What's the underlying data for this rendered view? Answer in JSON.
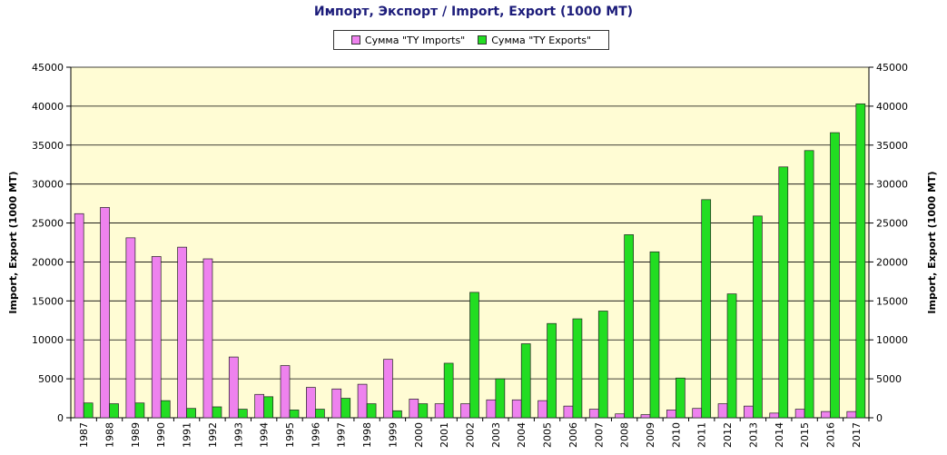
{
  "colors": {
    "imports": "#ee82ee",
    "exports": "#22dd22",
    "plot_bg": "#fffcd4",
    "title": "#1c1c7a"
  },
  "chart_data": {
    "type": "bar",
    "title": "Импорт, Экспорт / Import, Export (1000 MT)",
    "ylabel_left": "Import, Export (1000 MT)",
    "ylabel_right": "Import, Export (1000 MT)",
    "xlabel": "",
    "ylim": [
      0,
      45000
    ],
    "yticks": [
      0,
      5000,
      10000,
      15000,
      20000,
      25000,
      30000,
      35000,
      40000,
      45000
    ],
    "grid": true,
    "legend_position": "top",
    "categories": [
      "1987",
      "1988",
      "1989",
      "1990",
      "1991",
      "1992",
      "1993",
      "1994",
      "1995",
      "1996",
      "1997",
      "1998",
      "1999",
      "2000",
      "2001",
      "2002",
      "2003",
      "2004",
      "2005",
      "2006",
      "2007",
      "2008",
      "2009",
      "2010",
      "2011",
      "2012",
      "2013",
      "2014",
      "2015",
      "2016",
      "2017"
    ],
    "series": [
      {
        "name": "Сумма \"TY Imports\"",
        "values": [
          26200,
          27000,
          23100,
          20700,
          21900,
          20400,
          7800,
          3000,
          6700,
          3900,
          3700,
          4300,
          7500,
          2400,
          1800,
          1800,
          2300,
          2300,
          2200,
          1500,
          1100,
          500,
          400,
          1000,
          1200,
          1800,
          1500,
          600,
          1100,
          800,
          800
        ]
      },
      {
        "name": "Сумма \"TY Exports\"",
        "values": [
          1900,
          1800,
          1900,
          2200,
          1200,
          1400,
          1100,
          2700,
          1000,
          1100,
          2500,
          1800,
          900,
          1800,
          7000,
          16100,
          5000,
          9500,
          12100,
          12700,
          13700,
          23500,
          21300,
          5100,
          28000,
          15900,
          25900,
          32200,
          34300,
          36600,
          40300
        ]
      }
    ]
  }
}
